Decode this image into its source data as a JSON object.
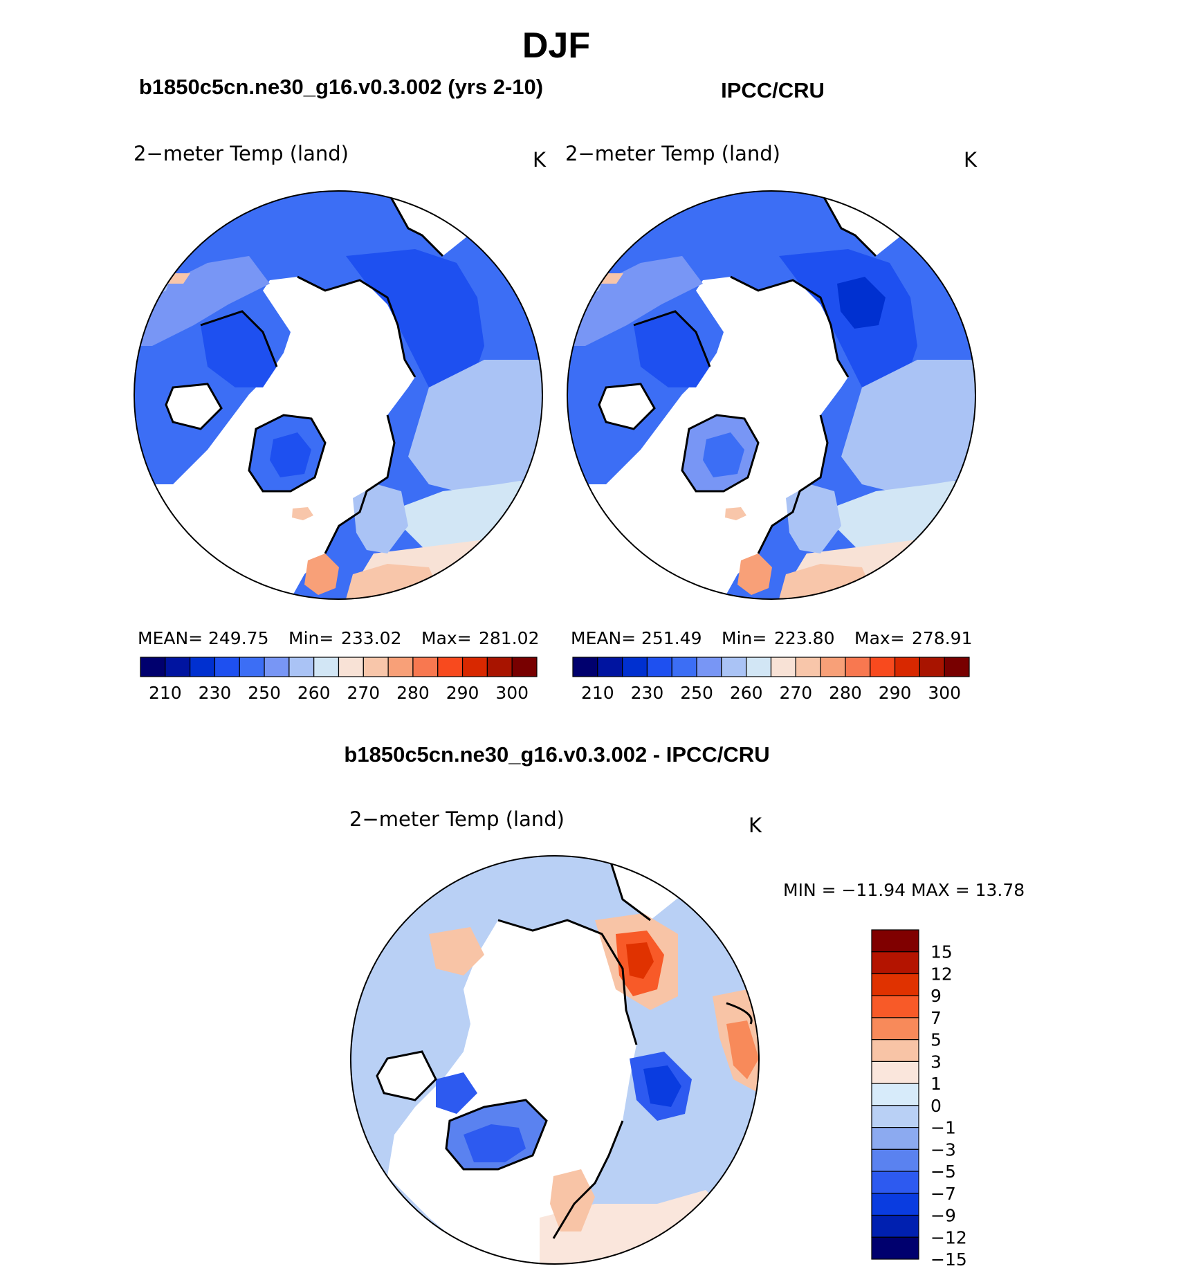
{
  "page_title": "DJF",
  "panels": [
    {
      "case_title": "b1850c5cn.ne30_g16.v0.3.002 (yrs 2-10)",
      "variable": "2−meter Temp (land)",
      "units": "K",
      "stats": {
        "mean_label": "MEAN=",
        "mean": "249.75",
        "min_label": "Min=",
        "min": "233.02",
        "max_label": "Max=",
        "max": "281.02"
      }
    },
    {
      "case_title": "IPCC/CRU",
      "variable": "2−meter Temp (land)",
      "units": "K",
      "stats": {
        "mean_label": "MEAN=",
        "mean": "251.49",
        "min_label": "Min=",
        "min": "223.80",
        "max_label": "Max=",
        "max": "278.91"
      }
    }
  ],
  "difference": {
    "title": "b1850c5cn.ne30_g16.v0.3.002 - IPCC/CRU",
    "variable": "2−meter Temp (land)",
    "units": "K",
    "minmax_text": "MIN  =  −11.94  MAX  =    13.78"
  },
  "colors": {
    "abs_scale": [
      "#00006e",
      "#0014a0",
      "#0030d0",
      "#1e50f0",
      "#3c6ef5",
      "#7896f5",
      "#aac3f5",
      "#d2e6f5",
      "#f8e2d6",
      "#f8c6aa",
      "#f8a078",
      "#f87850",
      "#f84a1e",
      "#d82800",
      "#a81400",
      "#780000"
    ],
    "diff_scale": [
      "#00006e",
      "#0020b0",
      "#0a3ce0",
      "#2d5af0",
      "#5a82f0",
      "#8caaf0",
      "#b9d0f5",
      "#d7ebfa",
      "#fae6dc",
      "#f8c4a6",
      "#f88a5a",
      "#f85a28",
      "#e03200",
      "#b41400",
      "#800000"
    ]
  },
  "chart_data": [
    {
      "type": "heatmap",
      "title": "b1850c5cn.ne30_g16.v0.3.002 (yrs 2-10)",
      "variable": "2-meter Temp (land)",
      "units": "K",
      "projection": "north polar stereographic",
      "colorbar_ticks": [
        "210",
        "230",
        "250",
        "260",
        "270",
        "280",
        "290",
        "300"
      ],
      "stats": {
        "mean": 249.75,
        "min": 233.02,
        "max": 281.02
      }
    },
    {
      "type": "heatmap",
      "title": "IPCC/CRU",
      "variable": "2-meter Temp (land)",
      "units": "K",
      "projection": "north polar stereographic",
      "colorbar_ticks": [
        "210",
        "230",
        "250",
        "260",
        "270",
        "280",
        "290",
        "300"
      ],
      "stats": {
        "mean": 251.49,
        "min": 223.8,
        "max": 278.91
      }
    },
    {
      "type": "heatmap",
      "title": "b1850c5cn.ne30_g16.v0.3.002 - IPCC/CRU",
      "variable": "2-meter Temp (land)",
      "units": "K",
      "projection": "north polar stereographic",
      "colorbar_ticks": [
        "15",
        "12",
        "9",
        "7",
        "5",
        "3",
        "1",
        "0",
        "−1",
        "−3",
        "−5",
        "−7",
        "−9",
        "−12",
        "−15"
      ],
      "stats": {
        "min": -11.94,
        "max": 13.78
      }
    }
  ]
}
